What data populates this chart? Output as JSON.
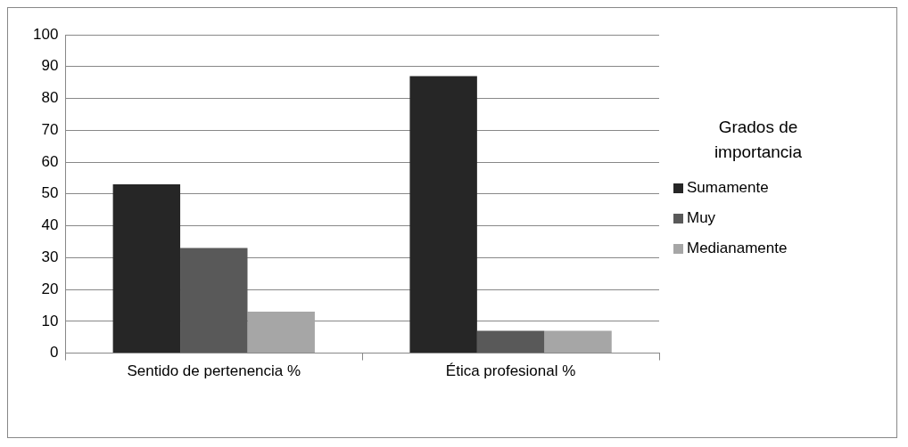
{
  "chart_data": {
    "type": "bar",
    "categories": [
      "Sentido de pertenencia %",
      "Ética profesional %"
    ],
    "series": [
      {
        "name": "Sumamente",
        "color": "#262626",
        "values": [
          53,
          87
        ]
      },
      {
        "name": "Muy",
        "color": "#595959",
        "values": [
          33,
          7
        ]
      },
      {
        "name": "Medianamente",
        "color": "#a6a6a6",
        "values": [
          13,
          7
        ]
      }
    ],
    "ylim": [
      0,
      100
    ],
    "yticks": [
      0,
      10,
      20,
      30,
      40,
      50,
      60,
      70,
      80,
      90,
      100
    ],
    "grid": "y",
    "legend": "right",
    "legend_title": "Grados de importancia"
  }
}
